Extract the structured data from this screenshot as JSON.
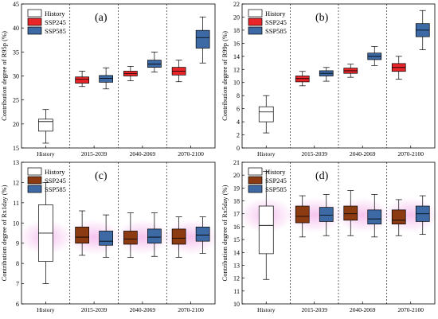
{
  "chart_data": [
    {
      "type": "box",
      "panel_label": "(a)",
      "ylabel": "Contribution degree of R95p (%)",
      "ylim": [
        15,
        45
      ],
      "yticks": [
        15,
        20,
        25,
        30,
        35,
        40,
        45
      ],
      "categories": [
        "History",
        "2015-2039",
        "2040-2069",
        "2070-2100"
      ],
      "legend": [
        "History",
        "SSP245",
        "SSP585"
      ],
      "boxes": [
        {
          "category": "History",
          "series": "History",
          "whisker_low": 16,
          "q1": 18.5,
          "median": 20.5,
          "q3": 21,
          "whisker_high": 23
        },
        {
          "category": "2015-2039",
          "series": "SSP245",
          "whisker_low": 27.8,
          "q1": 28.5,
          "median": 29.3,
          "q3": 29.8,
          "whisker_high": 31
        },
        {
          "category": "2015-2039",
          "series": "SSP585",
          "whisker_low": 27.3,
          "q1": 28.7,
          "median": 29.5,
          "q3": 30.1,
          "whisker_high": 31.7
        },
        {
          "category": "2040-2069",
          "series": "SSP245",
          "whisker_low": 29,
          "q1": 30,
          "median": 30.5,
          "q3": 31,
          "whisker_high": 32
        },
        {
          "category": "2040-2069",
          "series": "SSP585",
          "whisker_low": 30.8,
          "q1": 31.8,
          "median": 32.5,
          "q3": 33.3,
          "whisker_high": 35
        },
        {
          "category": "2070-2100",
          "series": "SSP245",
          "whisker_low": 28.8,
          "q1": 30.2,
          "median": 31,
          "q3": 31.8,
          "whisker_high": 33.3
        },
        {
          "category": "2070-2100",
          "series": "SSP585",
          "whisker_low": 32.7,
          "q1": 35.8,
          "median": 38,
          "q3": 39.5,
          "whisker_high": 42.3
        }
      ]
    },
    {
      "type": "box",
      "panel_label": "(b)",
      "ylabel": "Contribution degree of R99p (%)",
      "ylim": [
        0,
        22
      ],
      "yticks": [
        0,
        2,
        4,
        6,
        8,
        10,
        12,
        14,
        16,
        18,
        20,
        22
      ],
      "categories": [
        "History",
        "2015-2039",
        "2040-2069",
        "2070-2100"
      ],
      "legend": [
        "History",
        "SSP245",
        "SSP585"
      ],
      "boxes": [
        {
          "category": "History",
          "series": "History",
          "whisker_low": 2.3,
          "q1": 4,
          "median": 5.5,
          "q3": 6.3,
          "whisker_high": 8
        },
        {
          "category": "2015-2039",
          "series": "SSP245",
          "whisker_low": 9.5,
          "q1": 10.1,
          "median": 10.6,
          "q3": 11,
          "whisker_high": 11.7
        },
        {
          "category": "2015-2039",
          "series": "SSP585",
          "whisker_low": 10.2,
          "q1": 11,
          "median": 11.4,
          "q3": 11.8,
          "whisker_high": 12.3
        },
        {
          "category": "2040-2069",
          "series": "SSP245",
          "whisker_low": 10.8,
          "q1": 11.4,
          "median": 11.8,
          "q3": 12.2,
          "whisker_high": 12.8
        },
        {
          "category": "2040-2069",
          "series": "SSP585",
          "whisker_low": 12.6,
          "q1": 13.5,
          "median": 14,
          "q3": 14.5,
          "whisker_high": 15.5
        },
        {
          "category": "2070-2100",
          "series": "SSP245",
          "whisker_low": 10.5,
          "q1": 11.7,
          "median": 12.3,
          "q3": 12.9,
          "whisker_high": 14
        },
        {
          "category": "2070-2100",
          "series": "SSP585",
          "whisker_low": 15,
          "q1": 17,
          "median": 18,
          "q3": 19,
          "whisker_high": 21
        }
      ]
    },
    {
      "type": "box",
      "panel_label": "(c)",
      "ylabel": "Contribution degree of Rx1day (%)",
      "ylim": [
        6,
        13
      ],
      "yticks": [
        6,
        7,
        8,
        9,
        10,
        11,
        12,
        13
      ],
      "categories": [
        "History",
        "2015-2039",
        "2040-2069",
        "2070-2100"
      ],
      "legend": [
        "History",
        "SSP245",
        "SSP585"
      ],
      "boxes": [
        {
          "category": "History",
          "series": "History",
          "whisker_low": 7,
          "q1": 8.1,
          "median": 9.5,
          "q3": 10.9,
          "whisker_high": 12
        },
        {
          "category": "2015-2039",
          "series": "SSP245",
          "whisker_low": 8.4,
          "q1": 9,
          "median": 9.3,
          "q3": 9.8,
          "whisker_high": 10.6
        },
        {
          "category": "2015-2039",
          "series": "SSP585",
          "whisker_low": 8.3,
          "q1": 8.9,
          "median": 9.1,
          "q3": 9.6,
          "whisker_high": 10.4
        },
        {
          "category": "2040-2069",
          "series": "SSP245",
          "whisker_low": 8.3,
          "q1": 8.95,
          "median": 9.2,
          "q3": 9.6,
          "whisker_high": 10.5
        },
        {
          "category": "2040-2069",
          "series": "SSP585",
          "whisker_low": 8.35,
          "q1": 9,
          "median": 9.3,
          "q3": 9.7,
          "whisker_high": 10.5
        },
        {
          "category": "2070-2100",
          "series": "SSP245",
          "whisker_low": 8.3,
          "q1": 8.95,
          "median": 9.25,
          "q3": 9.7,
          "whisker_high": 10.3
        },
        {
          "category": "2070-2100",
          "series": "SSP585",
          "whisker_low": 8.5,
          "q1": 9.1,
          "median": 9.4,
          "q3": 9.8,
          "whisker_high": 10.3
        }
      ]
    },
    {
      "type": "box",
      "panel_label": "(d)",
      "ylabel": "Contribution degree of Rx5day (%)",
      "ylim": [
        10,
        21
      ],
      "yticks": [
        10,
        11,
        12,
        13,
        14,
        15,
        16,
        17,
        18,
        19,
        20,
        21
      ],
      "categories": [
        "History",
        "2015-2039",
        "2040-2069",
        "2070-2100"
      ],
      "legend": [
        "History",
        "SSP245",
        "SSP585"
      ],
      "boxes": [
        {
          "category": "History",
          "series": "History",
          "whisker_low": 11.9,
          "q1": 13.9,
          "median": 16.1,
          "q3": 17.6,
          "whisker_high": 20.3
        },
        {
          "category": "2015-2039",
          "series": "SSP245",
          "whisker_low": 15.2,
          "q1": 16.3,
          "median": 16.8,
          "q3": 17.6,
          "whisker_high": 18.4
        },
        {
          "category": "2015-2039",
          "series": "SSP585",
          "whisker_low": 15.3,
          "q1": 16.4,
          "median": 16.9,
          "q3": 17.5,
          "whisker_high": 18.5
        },
        {
          "category": "2040-2069",
          "series": "SSP245",
          "whisker_low": 15.3,
          "q1": 16.5,
          "median": 17,
          "q3": 17.6,
          "whisker_high": 18.8
        },
        {
          "category": "2040-2069",
          "series": "SSP585",
          "whisker_low": 15.2,
          "q1": 16.2,
          "median": 16.6,
          "q3": 17.3,
          "whisker_high": 18.5
        },
        {
          "category": "2070-2100",
          "series": "SSP245",
          "whisker_low": 15.3,
          "q1": 16.2,
          "median": 16.5,
          "q3": 17.3,
          "whisker_high": 18.1
        },
        {
          "category": "2070-2100",
          "series": "SSP585",
          "whisker_low": 15.4,
          "q1": 16.4,
          "median": 17,
          "q3": 17.6,
          "whisker_high": 18.4
        }
      ]
    }
  ],
  "colors": {
    "History": "#ffffff",
    "SSP245": "#e8262a",
    "SSP585": "#3d6aa5",
    "SSP245_panel_c_d": "#8b3a12",
    "highlight": "#f4b8ec"
  }
}
